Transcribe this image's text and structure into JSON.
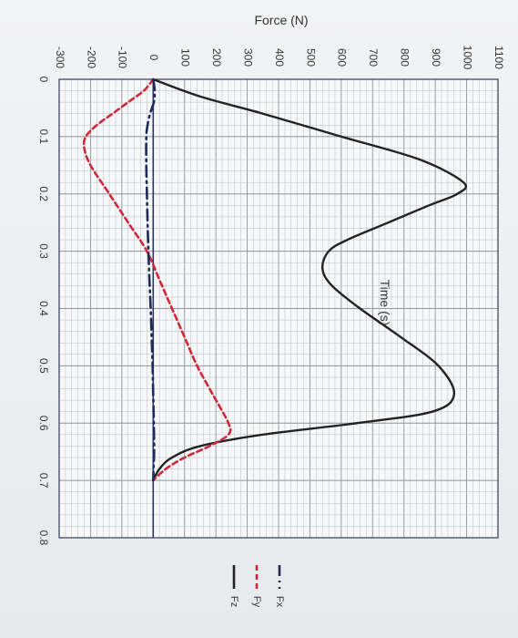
{
  "chart_data": {
    "type": "line",
    "title": "",
    "xlabel": "Time (s)",
    "ylabel": "Force (N)",
    "xlim": [
      0,
      0.8
    ],
    "ylim": [
      -300,
      1100
    ],
    "grid": true,
    "legend_placement": "right",
    "x_ticks": [
      "0",
      "0.1",
      "0.2",
      "0.3",
      "0.4",
      "0.5",
      "0.6",
      "0.7",
      "0.8"
    ],
    "y_ticks": [
      "-300",
      "-200",
      "-100",
      "0",
      "100",
      "200",
      "300",
      "400",
      "500",
      "600",
      "700",
      "800",
      "900",
      "1000",
      "1100"
    ],
    "series": [
      {
        "name": "Fx",
        "style": "dash-dot",
        "color": "#1f2a5a",
        "x": [
          0,
          0.02,
          0.04,
          0.06,
          0.08,
          0.1,
          0.15,
          0.2,
          0.25,
          0.3,
          0.35,
          0.4,
          0.45,
          0.5,
          0.55,
          0.6,
          0.65,
          0.68,
          0.7
        ],
        "y": [
          0,
          5,
          2,
          -10,
          -18,
          -22,
          -22,
          -20,
          -18,
          -15,
          -12,
          -8,
          -5,
          -2,
          0,
          2,
          3,
          1,
          0
        ]
      },
      {
        "name": "Fy",
        "style": "dashed",
        "color": "#d0283a",
        "x": [
          0,
          0.02,
          0.04,
          0.06,
          0.08,
          0.1,
          0.12,
          0.15,
          0.2,
          0.25,
          0.3,
          0.35,
          0.4,
          0.45,
          0.5,
          0.55,
          0.6,
          0.62,
          0.64,
          0.66,
          0.68,
          0.7
        ],
        "y": [
          0,
          -30,
          -80,
          -130,
          -180,
          -215,
          -220,
          -200,
          -140,
          -80,
          -20,
          20,
          60,
          100,
          140,
          190,
          240,
          240,
          180,
          100,
          40,
          0
        ]
      },
      {
        "name": "Fz",
        "style": "solid",
        "color": "#222222",
        "x": [
          0,
          0.03,
          0.06,
          0.1,
          0.14,
          0.18,
          0.2,
          0.22,
          0.25,
          0.28,
          0.3,
          0.33,
          0.36,
          0.4,
          0.45,
          0.5,
          0.55,
          0.58,
          0.6,
          0.62,
          0.64,
          0.66,
          0.68,
          0.7
        ],
        "y": [
          0,
          150,
          350,
          600,
          850,
          990,
          970,
          880,
          750,
          620,
          560,
          540,
          570,
          660,
          790,
          910,
          960,
          890,
          650,
          350,
          150,
          60,
          20,
          0
        ]
      }
    ]
  },
  "legend": [
    {
      "name": "Fx",
      "color": "#1f2a5a",
      "style": "dash-dot"
    },
    {
      "name": "Fy",
      "color": "#d0283a",
      "style": "dashed"
    },
    {
      "name": "Fz",
      "color": "#222222",
      "style": "solid"
    }
  ]
}
